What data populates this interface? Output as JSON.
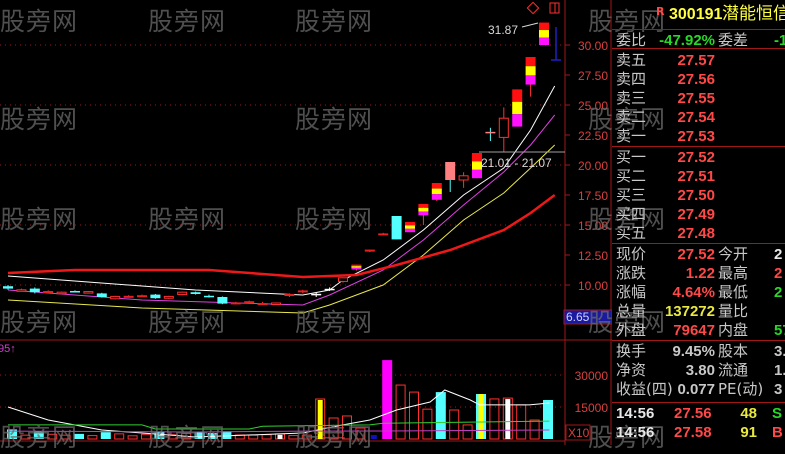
{
  "colors": {
    "background": "#000000",
    "frame": "#a01818",
    "up": "#ff3030",
    "down": "#54ffff",
    "yellow": "#ffff00",
    "magenta": "#ff00ff",
    "axis_text": "#d84040"
  },
  "watermark": "股旁网",
  "chart_data": {
    "type": "candlestick",
    "price_axis": {
      "ticks": [
        "30.00",
        "27.50",
        "25.00",
        "22.50",
        "20.00",
        "17.50",
        "15.00",
        "12.50",
        "10.00"
      ],
      "ylim": [
        6.0,
        33.75
      ]
    },
    "cursor_price": "6.65",
    "high_label": "31.87",
    "range_label": "21.01 - 21.07",
    "volume_label": "95↑",
    "volume_axis": {
      "ticks": [
        "30000",
        "15000"
      ],
      "unit": "X10"
    },
    "candles": [
      {
        "o": 9.9,
        "h": 10.0,
        "l": 9.6,
        "c": 9.7
      },
      {
        "o": 9.55,
        "h": 9.7,
        "l": 9.5,
        "c": 9.6
      },
      {
        "o": 9.7,
        "h": 9.8,
        "l": 9.3,
        "c": 9.4
      },
      {
        "o": 9.45,
        "h": 9.55,
        "l": 9.4,
        "c": 9.5
      },
      {
        "o": 9.35,
        "h": 9.45,
        "l": 9.3,
        "c": 9.4
      },
      {
        "o": 9.5,
        "h": 9.55,
        "l": 9.4,
        "c": 9.45
      },
      {
        "o": 9.45,
        "h": 9.5,
        "l": 9.3,
        "c": 9.35
      },
      {
        "o": 9.3,
        "h": 9.35,
        "l": 8.95,
        "c": 9.0
      },
      {
        "o": 8.85,
        "h": 9.1,
        "l": 8.8,
        "c": 9.05
      },
      {
        "o": 9.0,
        "h": 9.15,
        "l": 8.95,
        "c": 9.1
      },
      {
        "o": 9.1,
        "h": 9.2,
        "l": 9.05,
        "c": 9.15
      },
      {
        "o": 9.2,
        "h": 9.25,
        "l": 8.85,
        "c": 8.9
      },
      {
        "o": 8.9,
        "h": 9.1,
        "l": 8.85,
        "c": 9.05
      },
      {
        "o": 9.2,
        "h": 9.45,
        "l": 9.15,
        "c": 9.4
      },
      {
        "o": 9.4,
        "h": 9.45,
        "l": 9.2,
        "c": 9.25
      },
      {
        "o": 9.1,
        "h": 9.2,
        "l": 8.95,
        "c": 9.0
      },
      {
        "o": 9.0,
        "h": 9.05,
        "l": 8.4,
        "c": 8.45
      },
      {
        "o": 8.5,
        "h": 8.6,
        "l": 8.4,
        "c": 8.55
      },
      {
        "o": 8.6,
        "h": 8.7,
        "l": 8.5,
        "c": 8.65
      },
      {
        "o": 8.5,
        "h": 8.6,
        "l": 8.4,
        "c": 8.45
      },
      {
        "o": 8.4,
        "h": 8.55,
        "l": 8.35,
        "c": 8.5
      },
      {
        "o": 9.2,
        "h": 9.3,
        "l": 9.0,
        "c": 9.25
      },
      {
        "o": 9.5,
        "h": 9.6,
        "l": 9.3,
        "c": 9.55
      },
      {
        "o": 9.15,
        "h": 9.35,
        "l": 9.0,
        "c": 9.2
      },
      {
        "o": 9.6,
        "h": 9.8,
        "l": 9.5,
        "c": 9.62
      },
      {
        "o": 10.3,
        "h": 10.6,
        "l": 10.2,
        "c": 10.6
      },
      {
        "o": 11.3,
        "h": 11.7,
        "l": 11.2,
        "c": 11.7
      },
      {
        "o": 12.9,
        "h": 12.95,
        "l": 12.75,
        "c": 12.95
      },
      {
        "o": 14.3,
        "h": 14.35,
        "l": 14.2,
        "c": 14.3
      },
      {
        "o": 15.75,
        "h": 15.75,
        "l": 13.8,
        "c": 13.8
      },
      {
        "o": 14.4,
        "h": 15.25,
        "l": 14.4,
        "c": 15.25
      },
      {
        "o": 15.8,
        "h": 16.75,
        "l": 15.0,
        "c": 16.75
      },
      {
        "o": 17.1,
        "h": 18.5,
        "l": 17.0,
        "c": 18.5
      },
      {
        "o": 20.25,
        "h": 20.25,
        "l": 17.75,
        "c": 18.75
      },
      {
        "o": 18.75,
        "h": 19.4,
        "l": 18.1,
        "c": 19.1
      },
      {
        "o": 18.9,
        "h": 21.0,
        "l": 18.9,
        "c": 21.0
      },
      {
        "o": 22.7,
        "h": 23.1,
        "l": 22.0,
        "c": 22.7
      },
      {
        "o": 22.3,
        "h": 24.8,
        "l": 21.1,
        "c": 23.9
      },
      {
        "o": 23.2,
        "h": 26.3,
        "l": 23.2,
        "c": 26.3
      },
      {
        "o": 26.7,
        "h": 29.0,
        "l": 25.7,
        "c": 29.0
      },
      {
        "o": 30.0,
        "h": 31.87,
        "l": 30.0,
        "c": 31.87
      }
    ],
    "candle_styles": [
      "down",
      "hollow",
      "down",
      "up-thin",
      "hollow",
      "down",
      "hollow",
      "down",
      "hollow",
      "up-thin",
      "up-thin",
      "down",
      "hollow",
      "hollow",
      "down",
      "down",
      "down",
      "up-thin",
      "up-thin",
      "up-thin",
      "hollow",
      "up-thin",
      "up-thin",
      "cross",
      "cross",
      "hollow",
      "limit",
      "up-thin",
      "up-thin",
      "down",
      "limit",
      "limit",
      "limit",
      "pink",
      "hollow",
      "limit",
      "cross",
      "hollow",
      "limit",
      "limit",
      "limit"
    ],
    "moving_averages": [
      {
        "color": "#ffffff",
        "width": 1,
        "points": [
          [
            0,
            10.75
          ],
          [
            9,
            10.0
          ],
          [
            14,
            9.58
          ],
          [
            22,
            9.17
          ],
          [
            24,
            9.58
          ],
          [
            25,
            10.42
          ],
          [
            28,
            12.08
          ],
          [
            31,
            14.58
          ],
          [
            34,
            17.5
          ],
          [
            37,
            19.75
          ],
          [
            39,
            22.92
          ],
          [
            40.8,
            26.58
          ]
        ]
      },
      {
        "color": "#e040e0",
        "width": 1,
        "points": [
          [
            0,
            9.58
          ],
          [
            10,
            8.75
          ],
          [
            22,
            8.33
          ],
          [
            24,
            9.17
          ],
          [
            28,
            11.25
          ],
          [
            31,
            13.75
          ],
          [
            34,
            16.67
          ],
          [
            37,
            19.42
          ],
          [
            39,
            21.67
          ],
          [
            40.8,
            24.17
          ]
        ]
      },
      {
        "color": "#e8e850",
        "width": 1,
        "points": [
          [
            0,
            8.75
          ],
          [
            10,
            8.08
          ],
          [
            22,
            7.67
          ],
          [
            24,
            8.33
          ],
          [
            28,
            10.0
          ],
          [
            31,
            12.5
          ],
          [
            34,
            15.42
          ],
          [
            37,
            17.67
          ],
          [
            39,
            19.75
          ],
          [
            40.8,
            21.67
          ]
        ]
      },
      {
        "color": "#ee1818",
        "width": 2.5,
        "points": [
          [
            0,
            11.0
          ],
          [
            5,
            11.25
          ],
          [
            15,
            11.25
          ],
          [
            22,
            10.67
          ],
          [
            26,
            10.83
          ],
          [
            29,
            11.67
          ],
          [
            33,
            12.92
          ],
          [
            37,
            14.58
          ],
          [
            39,
            16.0
          ],
          [
            40.8,
            17.5
          ]
        ]
      }
    ],
    "volumes": [
      4500,
      1800,
      3500,
      2200,
      1800,
      2400,
      1600,
      3200,
      2400,
      1500,
      2200,
      3400,
      2000,
      2600,
      3100,
      2800,
      3600,
      1900,
      1800,
      2000,
      2400,
      1600,
      1800,
      18760,
      9850,
      10800,
      5160,
      500,
      37000,
      25300,
      22000,
      14000,
      22000,
      13600,
      6600,
      21100,
      18800,
      19200,
      16000,
      8900,
      18300
    ],
    "volume_styles": [
      "down",
      "hollow",
      "down",
      "hollow",
      "hollow",
      "down",
      "hollow",
      "down",
      "hollow",
      "hollow",
      "hollow",
      "down",
      "hollow",
      "hollow",
      "down",
      "down",
      "down",
      "hollow",
      "hollow",
      "hollow",
      "white",
      "hollow",
      "hollow",
      "yellow",
      "hollow",
      "hollow",
      "hollow",
      "blue",
      "magenta",
      "hollow",
      "hollow",
      "hollow",
      "down",
      "hollow",
      "hollow",
      "down-yellow",
      "hollow",
      "white",
      "hollow",
      "hollow",
      "down"
    ],
    "volume_lines": [
      {
        "color": "#ffffff",
        "points": [
          [
            0,
            15000
          ],
          [
            3,
            8900
          ],
          [
            7,
            4200
          ],
          [
            14,
            940
          ],
          [
            22,
            2800
          ],
          [
            25,
            6600
          ],
          [
            27,
            8900
          ],
          [
            29,
            13600
          ],
          [
            31.5,
            17350
          ],
          [
            32.6,
            23000
          ],
          [
            34.5,
            18300
          ],
          [
            35.2,
            16000
          ],
          [
            38.9,
            16000
          ],
          [
            40.4,
            16900
          ]
        ]
      },
      {
        "color": "#30d030",
        "points": [
          [
            0,
            6600
          ],
          [
            10,
            6600
          ],
          [
            11,
            4700
          ],
          [
            18,
            4700
          ],
          [
            19,
            6000
          ],
          [
            27,
            6600
          ],
          [
            28,
            7400
          ],
          [
            40.4,
            8400
          ]
        ]
      },
      {
        "color": "#c040c0",
        "points": [
          [
            0,
            3700
          ],
          [
            14,
            3300
          ],
          [
            22,
            3700
          ],
          [
            30,
            3800
          ],
          [
            40.4,
            4200
          ]
        ]
      }
    ]
  },
  "quote": {
    "flag": "R",
    "code": "300191",
    "name": "潜能恒信",
    "weibi": {
      "label": "委比",
      "value": "-47.92%",
      "label2": "委差",
      "value2": "-1"
    },
    "asks": [
      {
        "label": "卖五",
        "price": "27.57"
      },
      {
        "label": "卖四",
        "price": "27.56"
      },
      {
        "label": "卖三",
        "price": "27.55"
      },
      {
        "label": "卖二",
        "price": "27.54"
      },
      {
        "label": "卖一",
        "price": "27.53"
      }
    ],
    "bids": [
      {
        "label": "买一",
        "price": "27.52"
      },
      {
        "label": "买二",
        "price": "27.51"
      },
      {
        "label": "买三",
        "price": "27.50"
      },
      {
        "label": "买四",
        "price": "27.49"
      },
      {
        "label": "买五",
        "price": "27.48"
      }
    ],
    "stats": [
      {
        "label": "现价",
        "value": "27.52",
        "color": "red",
        "label2": "今开",
        "value2": "2",
        "color2": "white"
      },
      {
        "label": "涨跌",
        "value": "1.22",
        "color": "red",
        "label2": "最高",
        "value2": "2",
        "color2": "red"
      },
      {
        "label": "涨幅",
        "value": "4.64%",
        "color": "red",
        "label2": "最低",
        "value2": "2",
        "color2": "green"
      },
      {
        "label": "总量",
        "value": "137272",
        "color": "yellow",
        "label2": "量比",
        "value2": "",
        "color2": "white"
      },
      {
        "label": "外盘",
        "value": "79647",
        "color": "red",
        "label2": "内盘",
        "value2": "57",
        "color2": "green"
      }
    ],
    "fundamentals": [
      {
        "label": "换手",
        "value": "9.45%",
        "label2": "股本",
        "value2": "3.2"
      },
      {
        "label": "净资",
        "value": "3.80",
        "label2": "流通",
        "value2": "1.4"
      },
      {
        "label": "收益(四)",
        "value": "0.077",
        "label2": "PE(动)",
        "value2": "3"
      }
    ],
    "ticks": [
      {
        "time": "14:56",
        "price": "27.56",
        "vol": "48",
        "side": "S"
      },
      {
        "time": "14:56",
        "price": "27.58",
        "vol": "91",
        "side": "B"
      },
      {
        "time": "14:56",
        "price": "27.58",
        "vol": "139",
        "side": "B"
      }
    ]
  }
}
